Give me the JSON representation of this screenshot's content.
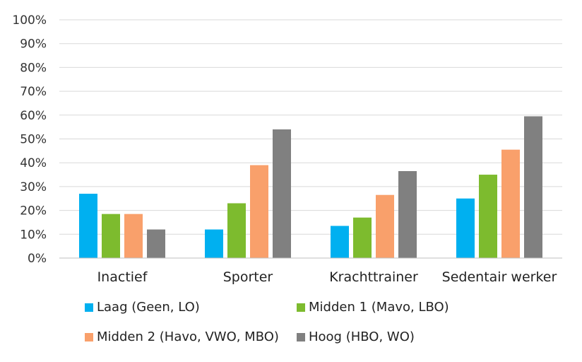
{
  "chart_data": {
    "type": "bar",
    "categories": [
      "Inactief",
      "Sporter",
      "Krachttrainer",
      "Sedentair werker"
    ],
    "series": [
      {
        "name": "Laag (Geen, LO)",
        "color": "#00B0F0",
        "values": [
          27,
          12,
          13.5,
          25
        ]
      },
      {
        "name": "Midden 1 (Mavo, LBO)",
        "color": "#7DBB2E",
        "values": [
          18.5,
          23,
          17,
          35
        ]
      },
      {
        "name": "Midden 2 (Havo, VWO, MBO)",
        "color": "#F9A06B",
        "values": [
          18.5,
          39,
          26.5,
          45.5
        ]
      },
      {
        "name": "Hoog (HBO, WO)",
        "color": "#808080",
        "values": [
          12,
          54,
          36.5,
          59.5
        ]
      }
    ],
    "y_ticks": [
      "0%",
      "10%",
      "20%",
      "30%",
      "40%",
      "50%",
      "60%",
      "70%",
      "80%",
      "90%",
      "100%"
    ],
    "ylim": [
      0,
      100
    ],
    "grid": true,
    "legend_position": "bottom"
  }
}
